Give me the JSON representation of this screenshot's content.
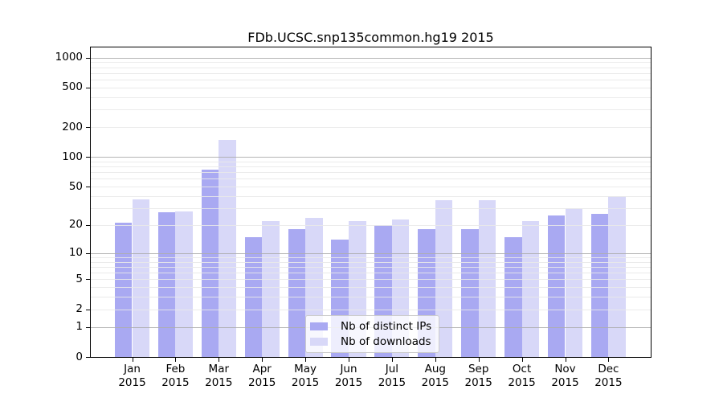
{
  "title": "FDb.UCSC.snp135common.hg19 2015",
  "chart_data": {
    "type": "bar",
    "title": "FDb.UCSC.snp135common.hg19 2015",
    "categories": [
      "Jan",
      "Feb",
      "Mar",
      "Apr",
      "May",
      "Jun",
      "Jul",
      "Aug",
      "Sep",
      "Oct",
      "Nov",
      "Dec"
    ],
    "x_tick_second_line": "2015",
    "series": [
      {
        "name": "Nb of distinct IPs",
        "color": "#a9a9f2",
        "values": [
          21,
          27,
          75,
          15,
          18,
          14,
          20,
          18,
          18,
          15,
          25,
          26
        ]
      },
      {
        "name": "Nb of downloads",
        "color": "#d8d8f8",
        "values": [
          37,
          28,
          148,
          22,
          24,
          22,
          23,
          36,
          36,
          22,
          30,
          40
        ]
      }
    ],
    "yscale": "log1p",
    "yticks": [
      0,
      1,
      2,
      5,
      10,
      20,
      50,
      100,
      200,
      500,
      1000
    ],
    "ylim": [
      0,
      1264
    ],
    "grid": true,
    "major_grid_values": [
      1,
      10,
      100,
      1000
    ],
    "minor_grid_values": [
      2,
      3,
      4,
      5,
      6,
      7,
      8,
      9,
      20,
      30,
      40,
      50,
      60,
      70,
      80,
      90,
      200,
      300,
      400,
      500,
      600,
      700,
      800,
      900
    ],
    "legend_position": "inside lower center",
    "xlabel": "",
    "ylabel": ""
  },
  "colors": {
    "distinct_ips_bar": "#a9a9f2",
    "downloads_bar": "#d8d8f8",
    "major_gridline": "#adadad",
    "minor_gridline": "#e8e8e8",
    "axis": "#000000",
    "background": "#ffffff",
    "legend_border": "#cccccc"
  }
}
